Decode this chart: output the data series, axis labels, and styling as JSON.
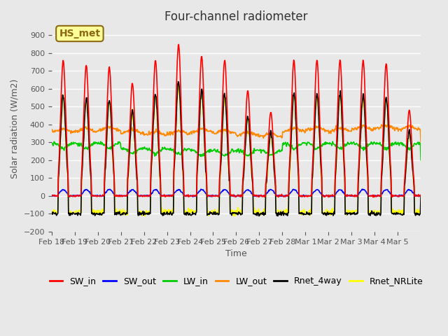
{
  "title": "Four-channel radiometer",
  "xlabel": "Time",
  "ylabel": "Solar radiation (W/m2)",
  "ylim": [
    -200,
    950
  ],
  "yticks": [
    -200,
    -100,
    0,
    100,
    200,
    300,
    400,
    500,
    600,
    700,
    800,
    900
  ],
  "background_color": "#e8e8e8",
  "annotation_text": "HS_met",
  "annotation_bg": "#ffff99",
  "annotation_border": "#8b6914",
  "x_labels": [
    "Feb 18",
    "Feb 19",
    "Feb 20",
    "Feb 21",
    "Feb 22",
    "Feb 23",
    "Feb 24",
    "Feb 25",
    "Feb 26",
    "Feb 27",
    "Feb 28",
    "Mar 1",
    "Mar 2",
    "Mar 3",
    "Mar 4",
    "Mar 5"
  ],
  "series": {
    "SW_in": {
      "color": "#ff0000",
      "lw": 1.2
    },
    "SW_out": {
      "color": "#0000ff",
      "lw": 1.2
    },
    "LW_in": {
      "color": "#00cc00",
      "lw": 1.2
    },
    "LW_out": {
      "color": "#ff8800",
      "lw": 1.2
    },
    "Rnet_4way": {
      "color": "#000000",
      "lw": 1.2
    },
    "Rnet_NRLite": {
      "color": "#ffff00",
      "lw": 1.2
    }
  },
  "legend_order": [
    "SW_in",
    "SW_out",
    "LW_in",
    "LW_out",
    "Rnet_4way",
    "Rnet_NRLite"
  ]
}
